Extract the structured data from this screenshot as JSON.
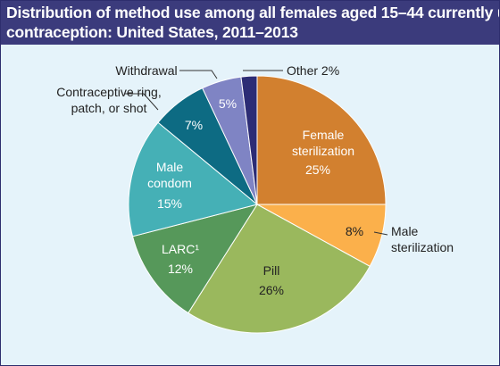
{
  "title_lines": [
    "Distribution of method use among all females aged 15–44 currently using",
    "contraception: United States, 2011–2013"
  ],
  "chart_data": {
    "type": "pie",
    "title": "Distribution of method use among all females aged 15–44 currently using contraception: United States, 2011–2013",
    "unit": "%",
    "slices": [
      {
        "label": "Female sterilization",
        "value": 25,
        "display": "25%",
        "color": "#d2802f"
      },
      {
        "label": "Male sterilization",
        "value": 8,
        "display": "8%",
        "color": "#fbb04b"
      },
      {
        "label": "Pill",
        "value": 26,
        "display": "26%",
        "color": "#9ab85d"
      },
      {
        "label": "LARC¹",
        "value": 12,
        "display": "12%",
        "color": "#56985a"
      },
      {
        "label": "Male condom",
        "value": 15,
        "display": "15%",
        "color": "#45b0b6"
      },
      {
        "label": "Contraceptive ring, patch, or shot",
        "value": 7,
        "display": "7%",
        "color": "#0d6b83"
      },
      {
        "label": "Withdrawal",
        "value": 5,
        "display": "5%",
        "color": "#7f84c4"
      },
      {
        "label": "Other",
        "value": 2,
        "display": "Other 2%",
        "color": "#2c2c75"
      }
    ]
  }
}
